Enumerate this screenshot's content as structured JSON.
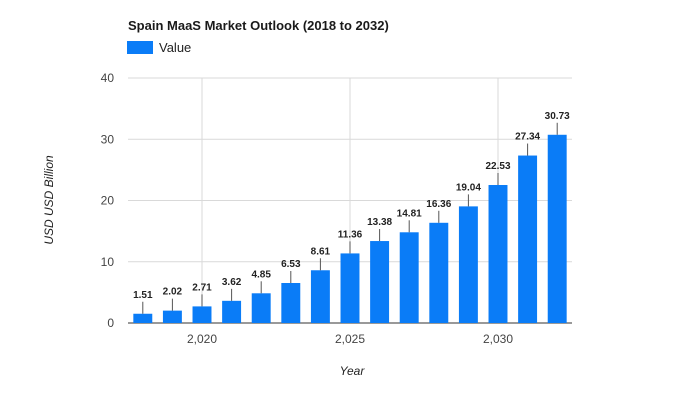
{
  "chart_data": {
    "type": "bar",
    "title": "Spain MaaS Market Outlook (2018 to 2032)",
    "xlabel": "Year",
    "ylabel": "USD USD Billion",
    "legend": {
      "position": "top-left",
      "entries": [
        "Value"
      ]
    },
    "grid": true,
    "x": [
      2018,
      2019,
      2020,
      2021,
      2022,
      2023,
      2024,
      2025,
      2026,
      2027,
      2028,
      2029,
      2030,
      2031,
      2032
    ],
    "series": [
      {
        "name": "Value",
        "color": "#0a7cf7",
        "values": [
          1.51,
          2.02,
          2.71,
          3.62,
          4.85,
          6.53,
          8.61,
          11.36,
          13.38,
          14.81,
          16.36,
          19.04,
          22.53,
          27.34,
          30.73
        ],
        "labels": [
          "1.51",
          "2.02",
          "2.71",
          "3.62",
          "4.85",
          "6.53",
          "8.61",
          "11.36",
          "13.38",
          "14.81",
          "16.36",
          "19.04",
          "22.53",
          "27.34",
          "30.73"
        ]
      }
    ],
    "ylim": [
      0,
      40
    ],
    "y_ticks": [
      0,
      10,
      20,
      30,
      40
    ],
    "y_tick_labels": [
      "0",
      "10",
      "20",
      "30",
      "40"
    ],
    "x_ticks": [
      2020,
      2025,
      2030
    ],
    "x_tick_labels": [
      "2,020",
      "2,025",
      "2,030"
    ]
  }
}
